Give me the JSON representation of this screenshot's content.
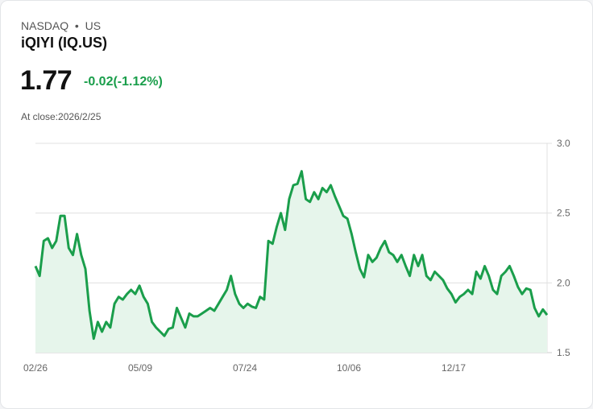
{
  "header": {
    "exchange": "NASDAQ",
    "separator": "•",
    "market": "US",
    "title": "iQIYI (IQ.US)"
  },
  "quote": {
    "price": "1.77",
    "change": "-0.02(-1.12%)",
    "at_close": "At close:2026/2/25"
  },
  "colors": {
    "line": "#1a9e4b",
    "fill": "#e6f5eb",
    "grid": "#e0e0e0"
  },
  "chart_data": {
    "type": "area",
    "title": "iQIYI (IQ.US)",
    "xlabel": "",
    "ylabel": "",
    "x_ticks": [
      "02/26",
      "05/09",
      "07/24",
      "10/06",
      "12/17"
    ],
    "y_ticks": [
      "3.0",
      "2.5",
      "2.0",
      "1.5"
    ],
    "ylim": [
      1.5,
      3.0
    ],
    "grid": true,
    "y_axis_position": "right",
    "series": [
      {
        "name": "IQ.US",
        "values": [
          2.12,
          2.05,
          2.3,
          2.32,
          2.25,
          2.3,
          2.48,
          2.48,
          2.25,
          2.2,
          2.35,
          2.2,
          2.1,
          1.8,
          1.6,
          1.72,
          1.65,
          1.72,
          1.68,
          1.85,
          1.9,
          1.88,
          1.92,
          1.95,
          1.92,
          1.98,
          1.9,
          1.85,
          1.72,
          1.68,
          1.65,
          1.62,
          1.67,
          1.68,
          1.82,
          1.75,
          1.68,
          1.78,
          1.76,
          1.76,
          1.78,
          1.8,
          1.82,
          1.8,
          1.85,
          1.9,
          1.95,
          2.05,
          1.92,
          1.85,
          1.82,
          1.85,
          1.83,
          1.82,
          1.9,
          1.88,
          2.3,
          2.28,
          2.4,
          2.5,
          2.38,
          2.6,
          2.7,
          2.71,
          2.8,
          2.6,
          2.58,
          2.65,
          2.6,
          2.68,
          2.65,
          2.7,
          2.62,
          2.55,
          2.48,
          2.46,
          2.35,
          2.22,
          2.1,
          2.04,
          2.2,
          2.15,
          2.18,
          2.25,
          2.3,
          2.22,
          2.2,
          2.15,
          2.2,
          2.12,
          2.05,
          2.2,
          2.12,
          2.2,
          2.05,
          2.02,
          2.08,
          2.05,
          2.02,
          1.96,
          1.92,
          1.86,
          1.9,
          1.92,
          1.95,
          1.92,
          2.08,
          2.03,
          2.12,
          2.05,
          1.95,
          1.92,
          2.05,
          2.08,
          2.12,
          2.05,
          1.97,
          1.92,
          1.96,
          1.95,
          1.82,
          1.76,
          1.81,
          1.77
        ]
      }
    ]
  }
}
